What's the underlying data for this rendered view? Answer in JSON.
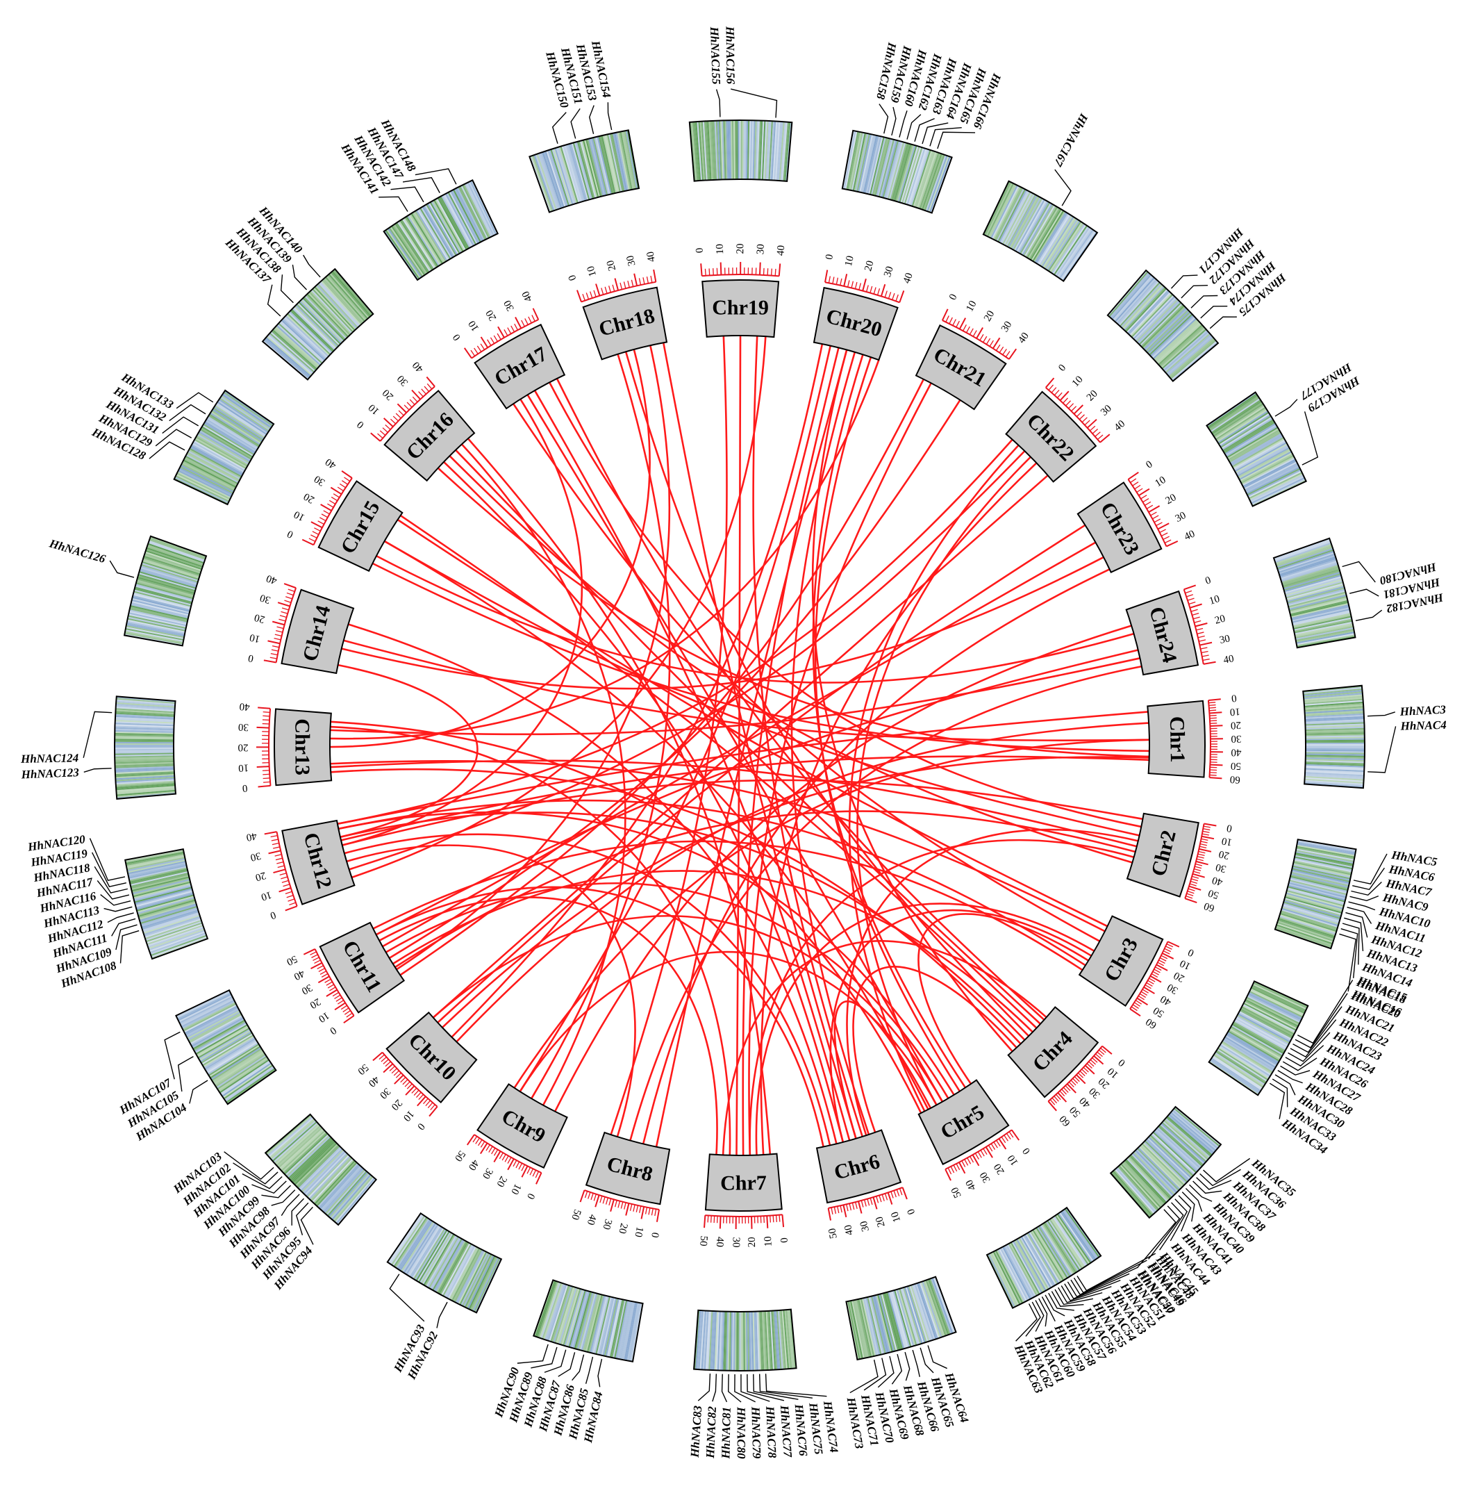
{
  "colors": {
    "link": "#ff1a1a",
    "chromosome_fill": "#c8c8c8",
    "tick": "#e8141f",
    "density_high": "#5f9f59",
    "density_low": "#86a7cf"
  },
  "chromosomes": [
    {
      "id": "Chr1",
      "label": "Chr1",
      "length_mb": 60,
      "ticks": [
        0,
        10,
        20,
        30,
        40,
        50,
        60
      ]
    },
    {
      "id": "Chr2",
      "label": "Chr2",
      "length_mb": 60,
      "ticks": [
        0,
        10,
        20,
        30,
        40,
        50,
        60
      ]
    },
    {
      "id": "Chr3",
      "label": "Chr3",
      "length_mb": 60,
      "ticks": [
        0,
        10,
        20,
        30,
        40,
        50,
        60
      ]
    },
    {
      "id": "Chr4",
      "label": "Chr4",
      "length_mb": 60,
      "ticks": [
        0,
        10,
        20,
        30,
        40,
        50,
        60
      ]
    },
    {
      "id": "Chr5",
      "label": "Chr5",
      "length_mb": 50,
      "ticks": [
        0,
        10,
        20,
        30,
        40,
        50
      ]
    },
    {
      "id": "Chr6",
      "label": "Chr6",
      "length_mb": 50,
      "ticks": [
        0,
        10,
        20,
        30,
        40,
        50
      ]
    },
    {
      "id": "Chr7",
      "label": "Chr7",
      "length_mb": 50,
      "ticks": [
        0,
        10,
        20,
        30,
        40,
        50
      ]
    },
    {
      "id": "Chr8",
      "label": "Chr8",
      "length_mb": 50,
      "ticks": [
        0,
        10,
        20,
        30,
        40,
        50
      ]
    },
    {
      "id": "Chr9",
      "label": "Chr9",
      "length_mb": 50,
      "ticks": [
        0,
        10,
        20,
        30,
        40,
        50
      ]
    },
    {
      "id": "Chr10",
      "label": "Chr10",
      "length_mb": 50,
      "ticks": [
        0,
        10,
        20,
        30,
        40,
        50
      ]
    },
    {
      "id": "Chr11",
      "label": "Chr11",
      "length_mb": 50,
      "ticks": [
        0,
        10,
        20,
        30,
        40,
        50
      ]
    },
    {
      "id": "Chr12",
      "label": "Chr12",
      "length_mb": 40,
      "ticks": [
        0,
        10,
        20,
        30,
        40
      ]
    },
    {
      "id": "Chr13",
      "label": "Chr13",
      "length_mb": 40,
      "ticks": [
        0,
        10,
        20,
        30,
        40
      ]
    },
    {
      "id": "Chr14",
      "label": "Chr14",
      "length_mb": 40,
      "ticks": [
        0,
        10,
        20,
        30,
        40
      ]
    },
    {
      "id": "Chr15",
      "label": "Chr15",
      "length_mb": 40,
      "ticks": [
        0,
        10,
        20,
        30,
        40
      ]
    },
    {
      "id": "Chr16",
      "label": "Chr16",
      "length_mb": 40,
      "ticks": [
        0,
        10,
        20,
        30,
        40
      ]
    },
    {
      "id": "Chr17",
      "label": "Chr17",
      "length_mb": 40,
      "ticks": [
        0,
        10,
        20,
        30,
        40
      ]
    },
    {
      "id": "Chr18",
      "label": "Chr18",
      "length_mb": 40,
      "ticks": [
        0,
        10,
        20,
        30,
        40
      ]
    },
    {
      "id": "Chr19",
      "label": "Chr19",
      "length_mb": 40,
      "ticks": [
        0,
        10,
        20,
        30,
        40
      ]
    },
    {
      "id": "Chr20",
      "label": "Chr20",
      "length_mb": 40,
      "ticks": [
        0,
        10,
        20,
        30,
        40
      ]
    },
    {
      "id": "Chr21",
      "label": "Chr21",
      "length_mb": 40,
      "ticks": [
        0,
        10,
        20,
        30,
        40
      ]
    },
    {
      "id": "Chr22",
      "label": "Chr22",
      "length_mb": 40,
      "ticks": [
        0,
        10,
        20,
        30,
        40
      ]
    },
    {
      "id": "Chr23",
      "label": "Chr23",
      "length_mb": 40,
      "ticks": [
        0,
        10,
        20,
        30,
        40
      ]
    },
    {
      "id": "Chr24",
      "label": "Chr24",
      "length_mb": 40,
      "ticks": [
        0,
        10,
        20,
        30,
        40
      ]
    }
  ],
  "gene_labels": {
    "Chr1": [
      "HhNAC3",
      "HhNAC4"
    ],
    "Chr2": [
      "HhNAC5",
      "HhNAC6",
      "HhNAC7",
      "HhNAC9",
      "HhNAC10",
      "HhNAC11",
      "HhNAC12",
      "HhNAC13",
      "HhNAC14",
      "HhNAC15",
      "HhNAC16"
    ],
    "Chr3": [
      "HhNAC18",
      "HhNAC20",
      "HhNAC21",
      "HhNAC22",
      "HhNAC23",
      "HhNAC24",
      "HhNAC26",
      "HhNAC27",
      "HhNAC28",
      "HhNAC30",
      "HhNAC33",
      "HhNAC34"
    ],
    "Chr4": [
      "HhNAC35",
      "HhNAC36",
      "HhNAC37",
      "HhNAC38",
      "HhNAC39",
      "HhNAC40",
      "HhNAC41",
      "HhNAC43",
      "HhNAC44",
      "HhNAC45",
      "HhNAC46",
      "HhNAC47"
    ],
    "Chr5": [
      "HhNAC48",
      "HhNAC49",
      "HhNAC50",
      "HhNAC51",
      "HhNAC52",
      "HhNAC53",
      "HhNAC54",
      "HhNAC55",
      "HhNAC56",
      "HhNAC57",
      "HhNAC58",
      "HhNAC59",
      "HhNAC60",
      "HhNAC61",
      "HhNAC62",
      "HhNAC63"
    ],
    "Chr6": [
      "HhNAC64",
      "HhNAC65",
      "HhNAC66",
      "HhNAC68",
      "HhNAC69",
      "HhNAC70",
      "HhNAC71",
      "HhNAC73"
    ],
    "Chr7": [
      "HhNAC74",
      "HhNAC75",
      "HhNAC76",
      "HhNAC77",
      "HhNAC78",
      "HhNAC79",
      "HhNAC80",
      "HhNAC81",
      "HhNAC82",
      "HhNAC83"
    ],
    "Chr8": [
      "HhNAC84",
      "HhNAC85",
      "HhNAC86",
      "HhNAC87",
      "HhNAC88",
      "HhNAC89",
      "HhNAC90"
    ],
    "Chr9": [
      "HhNAC92",
      "HhNAC93"
    ],
    "Chr10": [
      "HhNAC94",
      "HhNAC95",
      "HhNAC96",
      "HhNAC97",
      "HhNAC98",
      "HhNAC99",
      "HhNAC100",
      "HhNAC101",
      "HhNAC102",
      "HhNAC103"
    ],
    "Chr11": [
      "HhNAC104",
      "HhNAC105",
      "HhNAC107"
    ],
    "Chr12": [
      "HhNAC108",
      "HhNAC109",
      "HhNAC111",
      "HhNAC112",
      "HhNAC113",
      "HhNAC116",
      "HhNAC117",
      "HhNAC118",
      "HhNAC119",
      "HhNAC120"
    ],
    "Chr13": [
      "HhNAC123",
      "HhNAC124"
    ],
    "Chr14": [
      "HhNAC126"
    ],
    "Chr15": [
      "HhNAC128",
      "HhNAC129",
      "HhNAC131",
      "HhNAC132",
      "HhNAC133"
    ],
    "Chr16": [
      "HhNAC137",
      "HhNAC138",
      "HhNAC139",
      "HhNAC140"
    ],
    "Chr17": [
      "HhNAC141",
      "HhNAC142",
      "HhNAC147",
      "HhNAC148"
    ],
    "Chr18": [
      "HhNAC150",
      "HhNAC151",
      "HhNAC153",
      "HhNAC154"
    ],
    "Chr19": [
      "HhNAC155",
      "HhNAC156"
    ],
    "Chr20": [
      "HhNAC158",
      "HhNAC159",
      "HhNAC160",
      "HhNAC162",
      "HhNAC163",
      "HhNAC164",
      "HhNAC165",
      "HhNAC166"
    ],
    "Chr21": [
      "HhNAC167"
    ],
    "Chr22": [
      "HhNAC171",
      "HhNAC172",
      "HhNAC173",
      "HhNAC174",
      "HhNAC175"
    ],
    "Chr23": [
      "HhNAC177",
      "HhNAC179"
    ],
    "Chr24": [
      "HhNAC180",
      "HhNAC181",
      "HhNAC182"
    ]
  },
  "links": [
    [
      "Chr1",
      48,
      "Chr12",
      28
    ],
    [
      "Chr1",
      45,
      "Chr16",
      10
    ],
    [
      "Chr1",
      46,
      "Chr10",
      35
    ],
    [
      "Chr2",
      5,
      "Chr12",
      25
    ],
    [
      "Chr2",
      30,
      "Chr13",
      8
    ],
    [
      "Chr2",
      35,
      "Chr11",
      12
    ],
    [
      "Chr2",
      40,
      "Chr7",
      20
    ],
    [
      "Chr2",
      12,
      "Chr17",
      30
    ],
    [
      "Chr3",
      10,
      "Chr15",
      35
    ],
    [
      "Chr3",
      15,
      "Chr13",
      10
    ],
    [
      "Chr3",
      35,
      "Chr7",
      15
    ],
    [
      "Chr3",
      40,
      "Chr6",
      30
    ],
    [
      "Chr3",
      50,
      "Chr12",
      35
    ],
    [
      "Chr4",
      15,
      "Chr17",
      35
    ],
    [
      "Chr4",
      20,
      "Chr16",
      25
    ],
    [
      "Chr4",
      25,
      "Chr15",
      38
    ],
    [
      "Chr4",
      30,
      "Chr11",
      15
    ],
    [
      "Chr4",
      40,
      "Chr12",
      30
    ],
    [
      "Chr4",
      45,
      "Chr13",
      5
    ],
    [
      "Chr4",
      12,
      "Chr7",
      40
    ],
    [
      "Chr5",
      10,
      "Chr20",
      30
    ],
    [
      "Chr5",
      15,
      "Chr20",
      35
    ],
    [
      "Chr5",
      20,
      "Chr12",
      35
    ],
    [
      "Chr5",
      25,
      "Chr11",
      25
    ],
    [
      "Chr5",
      30,
      "Chr10",
      45
    ],
    [
      "Chr5",
      35,
      "Chr9",
      40
    ],
    [
      "Chr5",
      40,
      "Chr6",
      20
    ],
    [
      "Chr5",
      45,
      "Chr22",
      10
    ],
    [
      "Chr5",
      42,
      "Chr15",
      20
    ],
    [
      "Chr6",
      10,
      "Chr20",
      25
    ],
    [
      "Chr6",
      15,
      "Chr19",
      30
    ],
    [
      "Chr6",
      20,
      "Chr18",
      38
    ],
    [
      "Chr6",
      25,
      "Chr17",
      20
    ],
    [
      "Chr6",
      30,
      "Chr16",
      15
    ],
    [
      "Chr6",
      35,
      "Chr14",
      30
    ],
    [
      "Chr6",
      40,
      "Chr12",
      20
    ],
    [
      "Chr6",
      45,
      "Chr11",
      40
    ],
    [
      "Chr7",
      10,
      "Chr22",
      25
    ],
    [
      "Chr7",
      20,
      "Chr21",
      10
    ],
    [
      "Chr7",
      25,
      "Chr20",
      15
    ],
    [
      "Chr7",
      30,
      "Chr19",
      20
    ],
    [
      "Chr7",
      35,
      "Chr13",
      32
    ],
    [
      "Chr7",
      45,
      "Chr11",
      35
    ],
    [
      "Chr8",
      10,
      "Chr20",
      20
    ],
    [
      "Chr8",
      20,
      "Chr23",
      38
    ],
    [
      "Chr8",
      30,
      "Chr24",
      35
    ],
    [
      "Chr8",
      40,
      "Chr12",
      15
    ],
    [
      "Chr9",
      10,
      "Chr24",
      10
    ],
    [
      "Chr9",
      20,
      "Chr16",
      30
    ],
    [
      "Chr9",
      30,
      "Chr18",
      10
    ],
    [
      "Chr9",
      40,
      "Chr20",
      10
    ],
    [
      "Chr10",
      40,
      "Chr23",
      8
    ],
    [
      "Chr10",
      45,
      "Chr22",
      35
    ],
    [
      "Chr10",
      20,
      "Chr1",
      15
    ],
    [
      "Chr11",
      30,
      "Chr23",
      20
    ],
    [
      "Chr11",
      20,
      "Chr21",
      30
    ],
    [
      "Chr11",
      40,
      "Chr24",
      25
    ],
    [
      "Chr11",
      10,
      "Chr18",
      30
    ],
    [
      "Chr12",
      30,
      "Chr14",
      5
    ],
    [
      "Chr12",
      25,
      "Chr17",
      10
    ],
    [
      "Chr12",
      10,
      "Chr22",
      15
    ],
    [
      "Chr12",
      5,
      "Chr19",
      35
    ],
    [
      "Chr13",
      30,
      "Chr24",
      30
    ],
    [
      "Chr13",
      25,
      "Chr20",
      40
    ],
    [
      "Chr13",
      20,
      "Chr18",
      20
    ],
    [
      "Chr14",
      20,
      "Chr1",
      30
    ],
    [
      "Chr15",
      20,
      "Chr2",
      20
    ],
    [
      "Chr15",
      5,
      "Chr1",
      40
    ],
    [
      "Chr16",
      20,
      "Chr2",
      45
    ],
    [
      "Chr17",
      5,
      "Chr3",
      25
    ],
    [
      "Chr18",
      15,
      "Chr4",
      35
    ],
    [
      "Chr19",
      10,
      "Chr8",
      45
    ],
    [
      "Chr20",
      5,
      "Chr10",
      25
    ],
    [
      "Chr21",
      5,
      "Chr11",
      5
    ],
    [
      "Chr22",
      5,
      "Chr12",
      38
    ],
    [
      "Chr23",
      30,
      "Chr14",
      15
    ],
    [
      "Chr24",
      15,
      "Chr15",
      10
    ],
    [
      "Chr1",
      30,
      "Chr9",
      45
    ],
    [
      "Chr2",
      25,
      "Chr6",
      12
    ],
    [
      "Chr3",
      45,
      "Chr5",
      5
    ],
    [
      "Chr4",
      50,
      "Chr6",
      5
    ],
    [
      "Chr13",
      35,
      "Chr5",
      48
    ],
    [
      "Chr16",
      35,
      "Chr7",
      5
    ],
    [
      "Chr17",
      15,
      "Chr5",
      30
    ],
    [
      "Chr20",
      20,
      "Chr4",
      55
    ],
    [
      "Chr22",
      20,
      "Chr5",
      35
    ],
    [
      "Chr12",
      38,
      "Chr1",
      5
    ],
    [
      "Chr11",
      45,
      "Chr3",
      55
    ]
  ]
}
